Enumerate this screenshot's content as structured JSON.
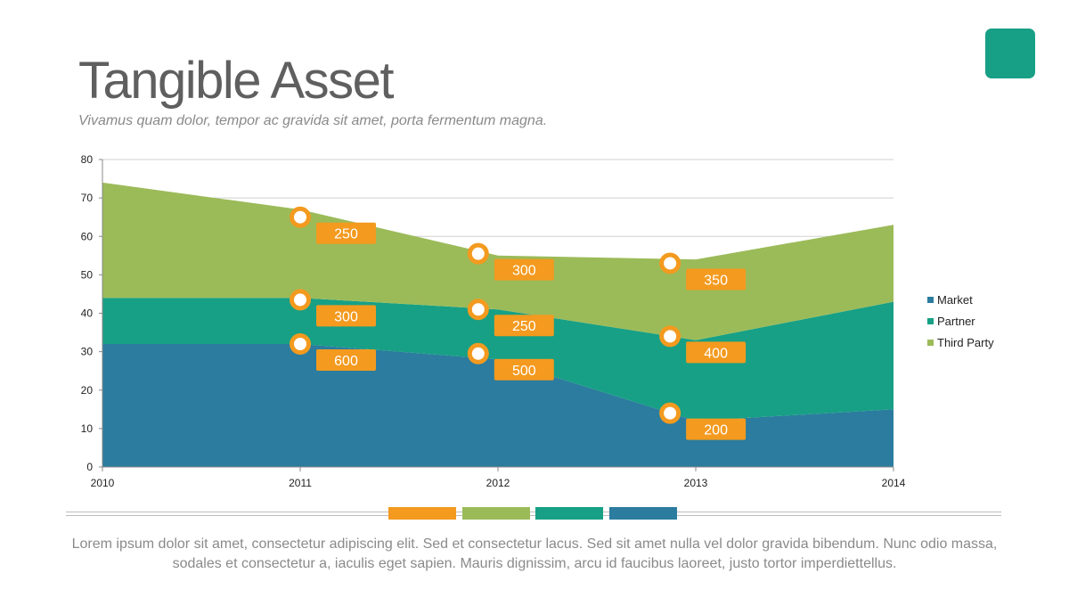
{
  "header": {
    "title": "Tangible Asset",
    "subtitle": "Vivamus quam dolor, tempor ac gravida sit amet, porta fermentum magna."
  },
  "footer": {
    "text": "Lorem ipsum dolor sit amet, consectetur adipiscing elit. Sed et consectetur lacus. Sed sit amet nulla vel dolor gravida bibendum. Nunc odio massa, sodales et consectetur a, iaculis eget sapien. Mauris dignissim, arcu id faucibus laoreet, justo tortor imperdiettellus."
  },
  "colors": {
    "market": "#2b7c9e",
    "partner": "#17a085",
    "third_party": "#9bbb59",
    "accent_orange": "#f39a1f",
    "corner_square": "#17a085"
  },
  "swatches": [
    "#f39a1f",
    "#9bbb59",
    "#17a085",
    "#2b7c9e"
  ],
  "chart_data": {
    "type": "area",
    "stacked": true,
    "x": [
      2010,
      2011,
      2012,
      2013,
      2014
    ],
    "ylim": [
      0,
      80
    ],
    "yticks": [
      0,
      10,
      20,
      30,
      40,
      50,
      60,
      70,
      80
    ],
    "grid": true,
    "legend_position": "right",
    "series": [
      {
        "name": "Market",
        "values": [
          32,
          32,
          28,
          12,
          15
        ],
        "color": "#2b7c9e"
      },
      {
        "name": "Partner",
        "values": [
          12,
          12,
          13,
          21,
          28
        ],
        "color": "#17a085"
      },
      {
        "name": "Third Party",
        "values": [
          30,
          23,
          14,
          21,
          20
        ],
        "color": "#9bbb59"
      }
    ],
    "annotations": [
      {
        "x": 2011,
        "y": 65,
        "label": "250"
      },
      {
        "x": 2011,
        "y": 43.5,
        "label": "300"
      },
      {
        "x": 2011,
        "y": 32,
        "label": "600"
      },
      {
        "x": 2011.9,
        "y": 55.5,
        "label": "300"
      },
      {
        "x": 2011.9,
        "y": 41,
        "label": "250"
      },
      {
        "x": 2011.9,
        "y": 29.5,
        "label": "500"
      },
      {
        "x": 2012.87,
        "y": 53,
        "label": "350"
      },
      {
        "x": 2012.87,
        "y": 34,
        "label": "400"
      },
      {
        "x": 2012.87,
        "y": 14,
        "label": "200"
      }
    ]
  }
}
